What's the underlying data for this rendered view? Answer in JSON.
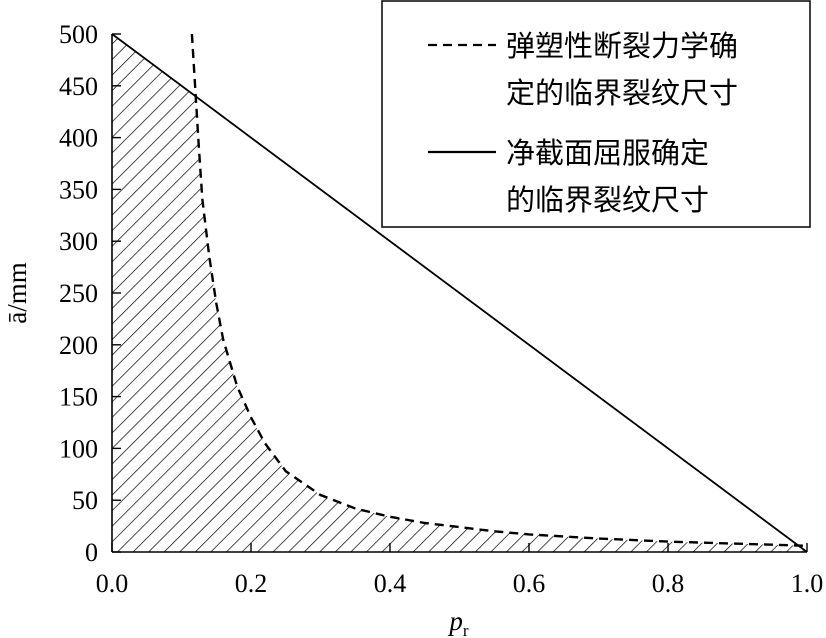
{
  "chart_data": {
    "type": "line",
    "title": "",
    "xlabel": "p",
    "xlabel_subscript": "r",
    "ylabel": "ā/mm",
    "xlim": [
      0.0,
      1.0
    ],
    "ylim": [
      0,
      500
    ],
    "x_ticks": [
      "0.0",
      "0.2",
      "0.4",
      "0.6",
      "0.8",
      "1.0"
    ],
    "y_ticks": [
      "0",
      "50",
      "100",
      "150",
      "200",
      "250",
      "300",
      "350",
      "400",
      "450",
      "500"
    ],
    "grid": false,
    "legend_position": "top-right",
    "hatched_region": "below both curves",
    "series": [
      {
        "name": "弹塑性断裂力学确定的临界裂纹尺寸",
        "legend_lines": [
          "弹塑性断裂力学确",
          "定的临界裂纹尺寸"
        ],
        "style": "dashed",
        "x": [
          0.115,
          0.12,
          0.125,
          0.13,
          0.14,
          0.15,
          0.16,
          0.18,
          0.2,
          0.22,
          0.25,
          0.3,
          0.35,
          0.4,
          0.45,
          0.5,
          0.55,
          0.6,
          0.7,
          0.8,
          0.9,
          0.95,
          1.0
        ],
        "y": [
          500,
          445,
          390,
          340,
          285,
          240,
          205,
          160,
          130,
          105,
          78,
          55,
          42,
          34,
          28,
          24,
          20,
          17,
          13,
          10,
          8,
          7,
          6
        ]
      },
      {
        "name": "净截面屈服确定的临界裂纹尺寸",
        "legend_lines": [
          "净截面屈服确定",
          "的临界裂纹尺寸"
        ],
        "style": "solid",
        "x": [
          0.0,
          1.0
        ],
        "y": [
          500,
          0
        ]
      }
    ]
  }
}
